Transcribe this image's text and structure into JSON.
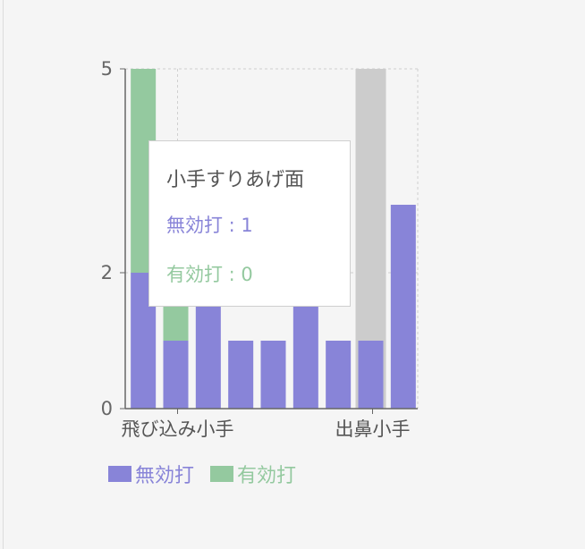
{
  "chart_data": {
    "type": "bar",
    "stacked": true,
    "categories": [
      "",
      "飛び込み小手",
      "",
      "",
      "",
      "",
      "",
      "出鼻小手",
      ""
    ],
    "series": [
      {
        "name": "無効打",
        "color": "#8884d8",
        "values": [
          2,
          1,
          1.5,
          1,
          1,
          1.5,
          1,
          1,
          3
        ]
      },
      {
        "name": "有効打",
        "color": "#94c99f",
        "values": [
          3,
          0.5,
          0,
          0,
          0,
          0,
          0,
          0,
          0
        ]
      }
    ],
    "ylim": [
      0,
      5
    ],
    "yticks": [
      "0",
      "2",
      "5"
    ],
    "grid": true,
    "legend_position": "bottom-left",
    "active_index": 7,
    "active_fill": "#cccccc"
  },
  "tooltip": {
    "title": "小手すりあげ面",
    "rows": [
      {
        "label": "無効打 : 1",
        "color": "#8884d8"
      },
      {
        "label": "有効打 : 0",
        "color": "#94c99f"
      }
    ]
  },
  "legend": [
    {
      "label": "無効打",
      "color": "#8884d8"
    },
    {
      "label": "有効打",
      "color": "#94c99f"
    }
  ]
}
